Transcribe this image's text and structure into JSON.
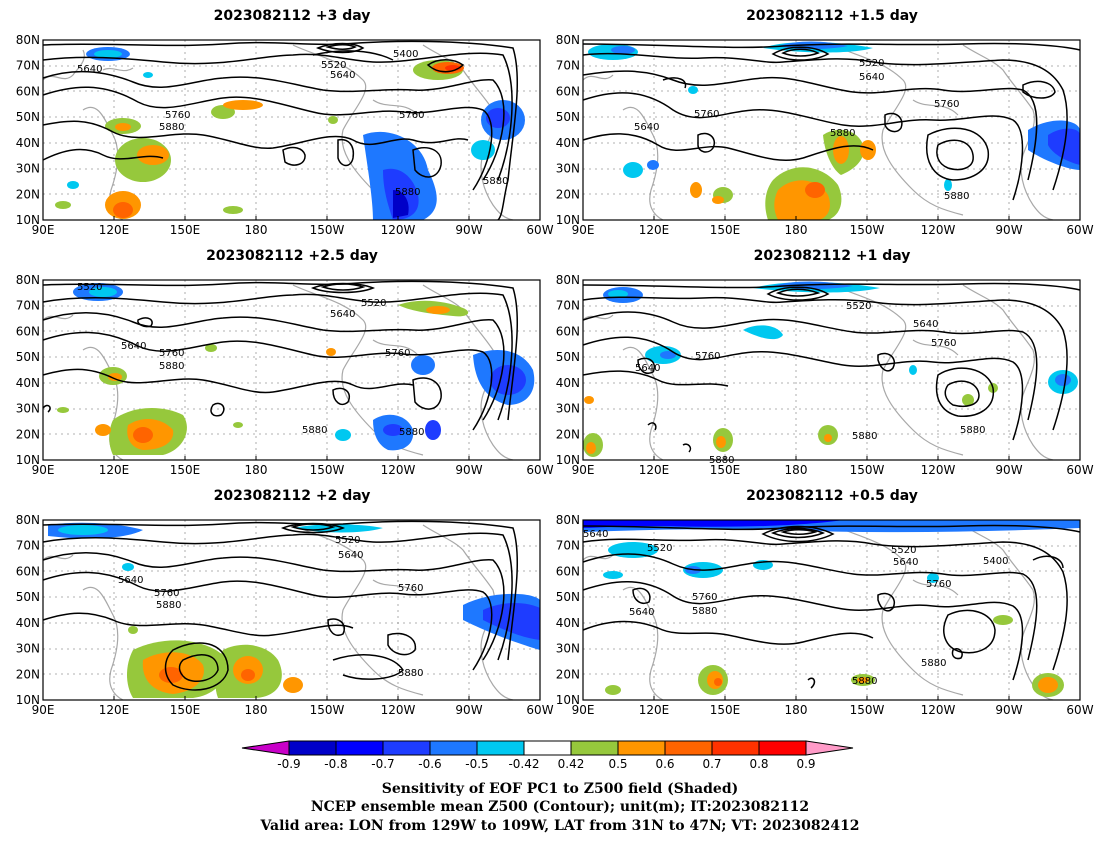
{
  "panels": [
    {
      "title": "2023082112 +3 day",
      "labels": [
        "5640",
        "5520",
        "5400",
        "5640",
        "5760",
        "5880",
        "5760",
        "5880",
        "5880"
      ]
    },
    {
      "title": "2023082112 +1.5 day",
      "labels": [
        "5520",
        "5640",
        "5760",
        "5640",
        "5760",
        "5880",
        "5880"
      ]
    },
    {
      "title": "2023082112 +2.5 day",
      "labels": [
        "5520",
        "5520",
        "5640",
        "5640",
        "5760",
        "5880",
        "5760",
        "5880",
        "5880"
      ]
    },
    {
      "title": "2023082112 +1 day",
      "labels": [
        "5520",
        "5640",
        "5760",
        "5760",
        "5640",
        "5880",
        "5880",
        "5880"
      ]
    },
    {
      "title": "2023082112 +2 day",
      "labels": [
        "5520",
        "5640",
        "5640",
        "5760",
        "5880",
        "5760",
        "5880"
      ]
    },
    {
      "title": "2023082112 +0.5 day",
      "labels": [
        "5640",
        "5520",
        "5520",
        "5640",
        "5400",
        "5760",
        "5640",
        "5760",
        "5880",
        "5880",
        "5880"
      ]
    }
  ],
  "axes": {
    "x_ticks": [
      "90E",
      "120E",
      "150E",
      "180",
      "150W",
      "120W",
      "90W",
      "60W"
    ],
    "y_ticks": [
      "80N",
      "70N",
      "60N",
      "50N",
      "40N",
      "30N",
      "20N",
      "10N"
    ]
  },
  "colorbar": {
    "ticks": [
      "-0.9",
      "-0.8",
      "-0.7",
      "-0.6",
      "-0.5",
      "-0.42",
      "0.42",
      "0.5",
      "0.6",
      "0.7",
      "0.8",
      "0.9"
    ],
    "colors": {
      "n09": "#c800c8",
      "n08": "#0000c8",
      "n07": "#0000ff",
      "n06": "#1e3cff",
      "n05": "#1e78ff",
      "n042": "#00c8f0",
      "mid": "#ffffff",
      "p05": "#96c83c",
      "p06": "#ff9600",
      "p07": "#ff6400",
      "p08": "#ff3200",
      "p09": "#ff0000",
      "pmax": "#ff9bc8"
    }
  },
  "footer": {
    "line1": "Sensitivity of EOF PC1 to Z500 field (Shaded)",
    "line2": "NCEP ensemble mean Z500 (Contour); unit(m); IT:2023082112",
    "line3": "Valid area: LON from 129W to 109W, LAT from 31N to 47N; VT: 2023082412"
  }
}
